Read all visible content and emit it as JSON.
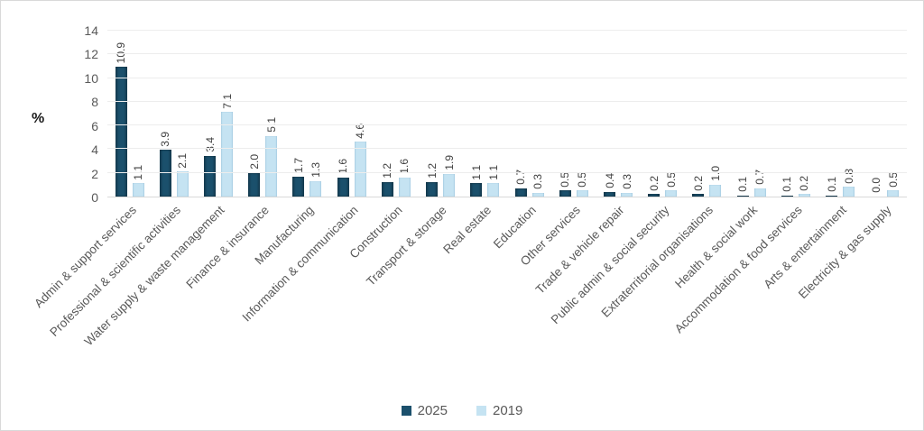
{
  "chart_data": {
    "type": "bar",
    "title": "",
    "ylabel": "%",
    "xlabel": "",
    "ylim": [
      0,
      14
    ],
    "y_ticks": [
      0,
      2,
      4,
      6,
      8,
      10,
      12,
      14
    ],
    "grid": true,
    "value_labels": true,
    "legend_position": "bottom",
    "categories": [
      "Admin & support services",
      "Professional & scientific activities",
      "Water supply & waste management",
      "Finance & insurance",
      "Manufacturing",
      "Information & communication",
      "Construction",
      "Transport & storage",
      "Real estate",
      "Education",
      "Other services",
      "Trade & vehicle repair",
      "Public admin & social security",
      "Extraterritorial organisations",
      "Health & social work",
      "Accommodation & food services",
      "Arts & entertainment",
      "Electricity & gas supply"
    ],
    "series": [
      {
        "name": "2025",
        "color": "#1b506c",
        "values": [
          10.9,
          3.9,
          3.4,
          2.0,
          1.7,
          1.6,
          1.2,
          1.2,
          1.1,
          0.7,
          0.5,
          0.4,
          0.2,
          0.2,
          0.1,
          0.1,
          0.1,
          0.0
        ]
      },
      {
        "name": "2019",
        "color": "#c5e3f2",
        "values": [
          1.1,
          2.1,
          7.1,
          5.1,
          1.3,
          4.6,
          1.6,
          1.9,
          1.1,
          0.3,
          0.5,
          0.3,
          0.5,
          1.0,
          0.7,
          0.2,
          0.8,
          0.5
        ]
      }
    ]
  },
  "colors": {
    "gridline": "#ededed",
    "axis_line": "#d9d9d9",
    "tick_text": "#595959",
    "value_text": "#3f3f3f"
  }
}
